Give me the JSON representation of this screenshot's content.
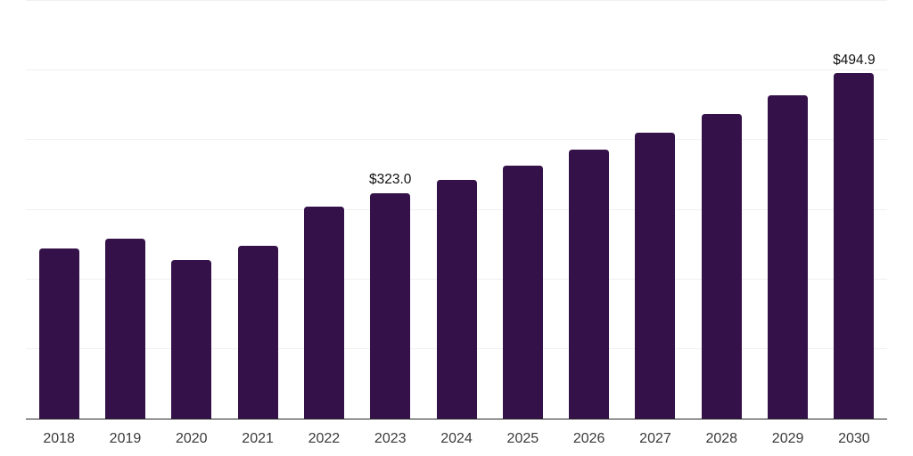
{
  "chart_data": {
    "type": "bar",
    "categories": [
      "2018",
      "2019",
      "2020",
      "2021",
      "2022",
      "2023",
      "2024",
      "2025",
      "2026",
      "2027",
      "2028",
      "2029",
      "2030"
    ],
    "values": [
      244,
      258,
      227,
      248,
      304,
      323.0,
      342,
      362,
      386,
      410,
      436,
      463,
      494.9
    ],
    "annotations": [
      {
        "category": "2023",
        "text": "$323.0"
      },
      {
        "category": "2030",
        "text": "$494.9"
      }
    ],
    "title": "",
    "xlabel": "",
    "ylabel": "",
    "ylim": [
      0,
      600
    ],
    "gridlines": [
      100,
      200,
      300,
      400,
      500,
      600
    ],
    "grid": true,
    "legend": false,
    "y_axis_labels_visible": false
  },
  "colors": {
    "background": "#ffffff",
    "bar": "#341249",
    "gridline": "#f0f0f0",
    "axis_line": "#262626",
    "value_label": "#111111",
    "tick_label": "#3a3a3a"
  }
}
